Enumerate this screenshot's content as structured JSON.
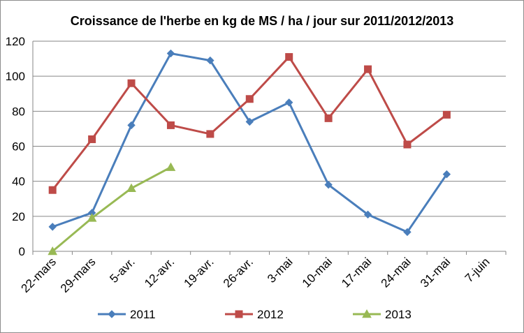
{
  "chart_data": {
    "type": "line",
    "title": "Croissance de l'herbe en kg de MS / ha / jour sur 2011/2012/2013",
    "xlabel": "",
    "ylabel": "",
    "categories": [
      "22-mars",
      "29-mars",
      "5-avr.",
      "12-avr.",
      "19-avr.",
      "26-avr.",
      "3-mai",
      "10-mai",
      "17-mai",
      "24-mai",
      "31-mai",
      "7-juin"
    ],
    "ylim": [
      0,
      120
    ],
    "yticks": [
      0,
      20,
      40,
      60,
      80,
      100,
      120
    ],
    "grid": "horizontal",
    "legend_position": "bottom",
    "series": [
      {
        "name": "2011",
        "color": "#4a7ebb",
        "marker": "diamond",
        "values": [
          14,
          22,
          72,
          113,
          109,
          74,
          85,
          38,
          21,
          11,
          44,
          null
        ]
      },
      {
        "name": "2012",
        "color": "#be4b48",
        "marker": "square",
        "values": [
          35,
          64,
          96,
          72,
          67,
          87,
          111,
          76,
          104,
          61,
          78,
          null
        ]
      },
      {
        "name": "2013",
        "color": "#98b954",
        "marker": "triangle",
        "values": [
          0,
          19,
          36,
          48,
          null,
          null,
          null,
          null,
          null,
          null,
          null,
          null
        ]
      }
    ]
  }
}
